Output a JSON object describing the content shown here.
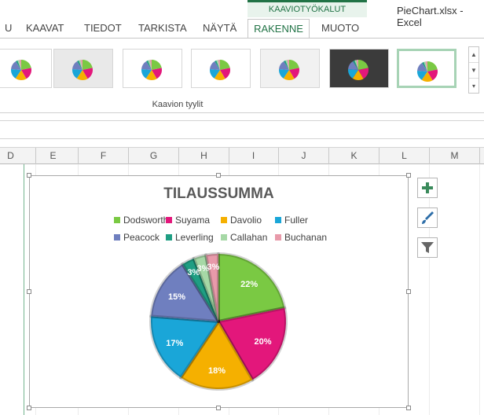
{
  "window": {
    "title": "PieChart.xlsx - Excel"
  },
  "ribbon": {
    "tabs": [
      {
        "label": "U"
      },
      {
        "label": "KAAVAT"
      },
      {
        "label": "TIEDOT"
      },
      {
        "label": "TARKISTA"
      },
      {
        "label": "NÄYTÄ"
      }
    ],
    "context_group": "KAAVIOTYÖKALUT",
    "context_tabs": [
      {
        "label": "RAKENNE",
        "active": true
      },
      {
        "label": "MUOTO",
        "active": false
      }
    ],
    "gallery_label": "Kaavion tyylit",
    "gallery_count": 7,
    "selected_style_index": 6
  },
  "columns": [
    "D",
    "E",
    "F",
    "G",
    "H",
    "I",
    "J",
    "K",
    "L",
    "M"
  ],
  "icons": {
    "add": "plus-icon",
    "style": "paintbrush-icon",
    "filter": "funnel-icon"
  },
  "chart_data": {
    "type": "pie",
    "title": "TILAUSSUMMA",
    "categories": [
      "Dodsworth",
      "Suyama",
      "Davolio",
      "Fuller",
      "Peacock",
      "Leverling",
      "Callahan",
      "Buchanan"
    ],
    "values": [
      22,
      20,
      18,
      17,
      15,
      3,
      3,
      3
    ],
    "labels": [
      "22%",
      "20%",
      "18%",
      "17%",
      "15%",
      "3%",
      "3%",
      "3%"
    ],
    "colors": [
      "#7ac943",
      "#e3177b",
      "#f5b000",
      "#1aa6d8",
      "#6f7fbf",
      "#1f9e83",
      "#a6d8a6",
      "#e89aaa"
    ],
    "legend_position": "top"
  }
}
